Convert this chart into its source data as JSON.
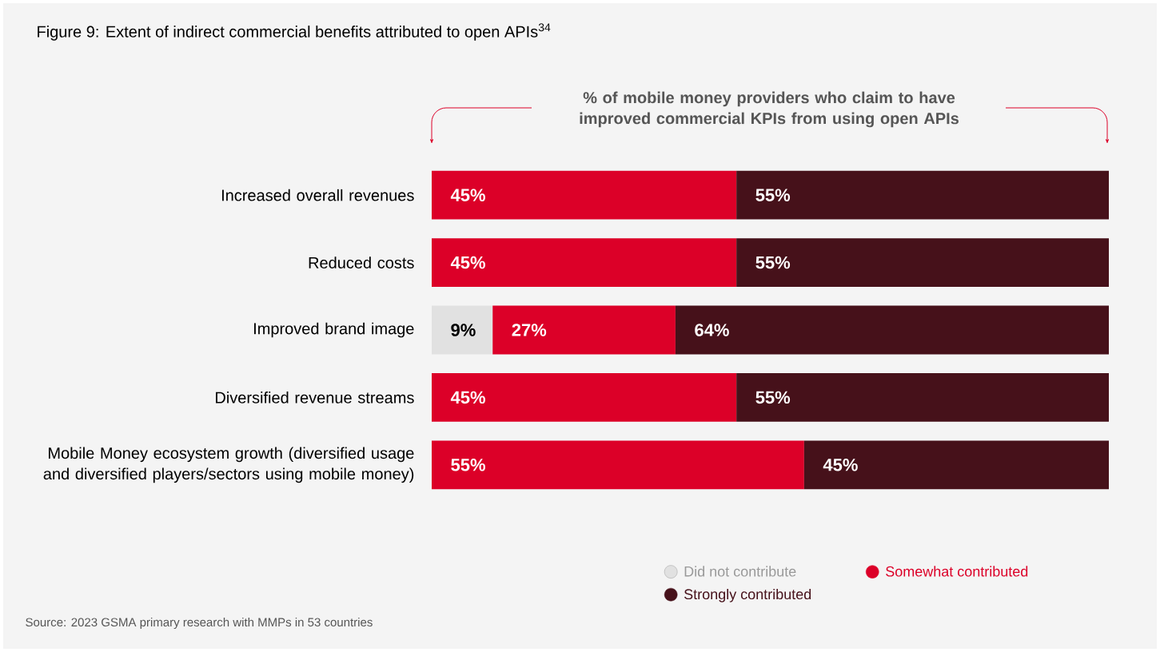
{
  "chart_data": {
    "type": "bar",
    "orientation": "horizontal",
    "stacked": true,
    "title": "Figure 9: Extent of indirect commercial benefits attributed to open APIs$^{34}$",
    "categories": [
      "Increased overall revenues",
      "Reduced costs",
      "Improved brand image",
      "Diversified revenue streams",
      "Mobile Money ecosystem growth (diversified usage and diversified players/sectors using mobile money)"
    ],
    "series": [
      {
        "name": "Did not contribute",
        "color": "#e1e1e1",
        "values": [
          null,
          null,
          9,
          null,
          null
        ],
        "value_labels": [
          null,
          null,
          "9%",
          null,
          null
        ]
      },
      {
        "name": "Somewhat contributed",
        "color": "#dc0028",
        "values": [
          45,
          45,
          27,
          45,
          55
        ],
        "value_labels": [
          "45%",
          "45%",
          "27%",
          "45%",
          "55%"
        ]
      },
      {
        "name": "Strongly contributed",
        "color": "#46111a",
        "values": [
          55,
          55,
          64,
          55,
          45
        ],
        "value_labels": [
          "55%",
          "55%",
          "64%",
          "55%",
          "45%"
        ]
      }
    ],
    "legend": "bottom right",
    "annotations": [
      "% of mobile money providers who claim to have improved commercial KPIs from using open APIs",
      "Source: 2023 GSMA primary research with MMPs in 53 countries"
    ]
  }
}
